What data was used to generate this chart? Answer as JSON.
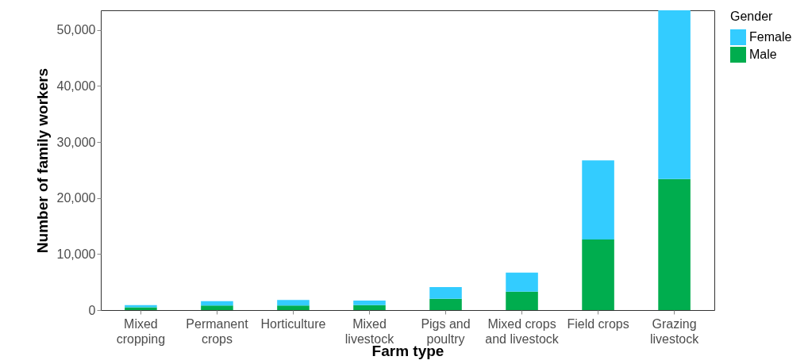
{
  "chart_data": {
    "type": "bar",
    "stacked": true,
    "xlabel": "Farm type",
    "ylabel": "Number of family workers",
    "legend_title": "Gender",
    "legend": "right",
    "grid": false,
    "categories": [
      "Mixed cropping",
      "Permanent crops",
      "Horticulture",
      "Mixed livestock",
      "Pigs and poultry",
      "Mixed crops and livestock",
      "Field crops",
      "Grazing livestock"
    ],
    "series": [
      {
        "name": "Male",
        "color": "#00ad4e",
        "values": [
          500,
          800,
          800,
          900,
          2000,
          3300,
          12600,
          23400
        ]
      },
      {
        "name": "Female",
        "color": "#33ccff",
        "values": [
          400,
          800,
          1000,
          800,
          2100,
          3400,
          14100,
          30100
        ]
      }
    ],
    "ylim": [
      0,
      53500
    ],
    "yticks": [
      0,
      {
        "value": 10000,
        "label": "10,000"
      },
      {
        "value": 20000,
        "label": "20,000"
      },
      {
        "value": 30000,
        "label": "30,000"
      },
      {
        "value": 40000,
        "label": "40,000"
      },
      {
        "value": 50000,
        "label": "50,000"
      }
    ]
  }
}
